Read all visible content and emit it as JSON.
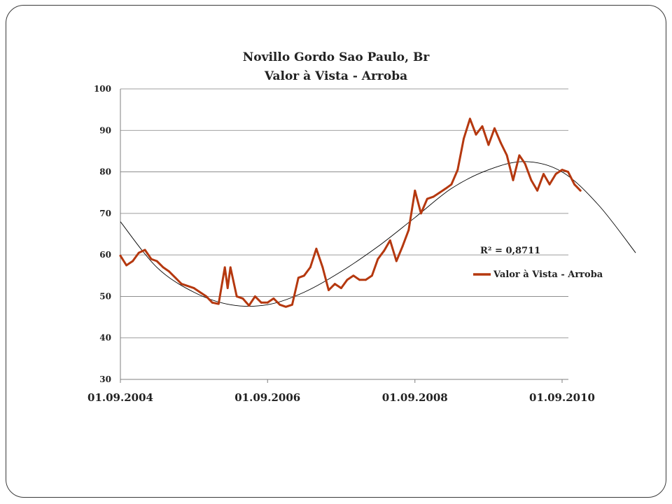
{
  "chart_data": {
    "type": "line",
    "title": "Novillo Gordo Sao Paulo, Br",
    "subtitle": "Valor à Vista - Arroba",
    "ylim": [
      30,
      100
    ],
    "yticks": [
      "30",
      "40",
      "50",
      "60",
      "70",
      "80",
      "90",
      "100"
    ],
    "xlim": [
      "2004-09-01",
      "2010-09-01"
    ],
    "xticks": [
      "01.09.2004",
      "01.09.2006",
      "01.09.2008",
      "01.09.2010"
    ],
    "grid": "horizontal",
    "legend_position": "right",
    "series": [
      {
        "name": "Valor à Vista - Arroba",
        "color": "#b5380f",
        "points": [
          [
            "2004-09-01",
            59.8
          ],
          [
            "2004-10-01",
            57.5
          ],
          [
            "2004-11-01",
            58.5
          ],
          [
            "2004-12-01",
            60.5
          ],
          [
            "2005-01-01",
            61.2
          ],
          [
            "2005-02-01",
            59.0
          ],
          [
            "2005-03-01",
            58.5
          ],
          [
            "2005-04-01",
            57.0
          ],
          [
            "2005-05-01",
            56.0
          ],
          [
            "2005-06-01",
            54.5
          ],
          [
            "2005-07-01",
            53.0
          ],
          [
            "2005-08-01",
            52.5
          ],
          [
            "2005-09-01",
            52.0
          ],
          [
            "2005-10-01",
            51.0
          ],
          [
            "2005-11-01",
            50.0
          ],
          [
            "2005-12-01",
            48.5
          ],
          [
            "2006-01-01",
            48.2
          ],
          [
            "2006-02-01",
            57.0
          ],
          [
            "2006-02-15",
            52.0
          ],
          [
            "2006-03-01",
            57.0
          ],
          [
            "2006-04-01",
            50.0
          ],
          [
            "2006-05-01",
            49.5
          ],
          [
            "2006-06-01",
            47.8
          ],
          [
            "2006-07-01",
            50.0
          ],
          [
            "2006-08-01",
            48.5
          ],
          [
            "2006-09-01",
            48.5
          ],
          [
            "2006-10-01",
            49.5
          ],
          [
            "2006-11-01",
            48.0
          ],
          [
            "2006-12-01",
            47.5
          ],
          [
            "2007-01-01",
            48.0
          ],
          [
            "2007-02-01",
            54.5
          ],
          [
            "2007-03-01",
            55.0
          ],
          [
            "2007-04-01",
            57.0
          ],
          [
            "2007-05-01",
            61.5
          ],
          [
            "2007-06-01",
            57.0
          ],
          [
            "2007-07-01",
            51.5
          ],
          [
            "2007-08-01",
            53.0
          ],
          [
            "2007-09-01",
            52.0
          ],
          [
            "2007-10-01",
            54.0
          ],
          [
            "2007-11-01",
            55.0
          ],
          [
            "2007-12-01",
            54.0
          ],
          [
            "2008-01-01",
            54.0
          ],
          [
            "2008-02-01",
            55.0
          ],
          [
            "2008-03-01",
            59.0
          ],
          [
            "2008-04-01",
            61.0
          ],
          [
            "2008-05-01",
            63.5
          ],
          [
            "2008-06-01",
            58.5
          ],
          [
            "2008-07-01",
            62.0
          ],
          [
            "2008-08-01",
            66.0
          ],
          [
            "2008-09-01",
            75.5
          ],
          [
            "2008-10-01",
            70.0
          ],
          [
            "2008-11-01",
            73.5
          ],
          [
            "2008-12-01",
            74.0
          ],
          [
            "2009-01-01",
            75.0
          ],
          [
            "2009-02-01",
            76.0
          ],
          [
            "2009-03-01",
            77.0
          ],
          [
            "2009-04-01",
            80.5
          ],
          [
            "2009-05-01",
            88.0
          ],
          [
            "2009-06-01",
            92.8
          ],
          [
            "2009-07-01",
            89.0
          ],
          [
            "2009-08-01",
            91.0
          ],
          [
            "2009-09-01",
            86.5
          ],
          [
            "2009-10-01",
            90.5
          ],
          [
            "2009-11-01",
            87.0
          ],
          [
            "2009-12-01",
            84.0
          ],
          [
            "2010-01-01",
            78.0
          ],
          [
            "2010-02-01",
            84.0
          ],
          [
            "2010-03-01",
            82.0
          ],
          [
            "2010-04-01",
            78.0
          ],
          [
            "2010-05-01",
            75.5
          ],
          [
            "2010-06-01",
            79.5
          ],
          [
            "2010-07-01",
            77.0
          ],
          [
            "2010-08-01",
            79.5
          ],
          [
            "2010-09-01",
            80.5
          ],
          [
            "2010-10-01",
            80.0
          ],
          [
            "2010-11-01",
            77.0
          ],
          [
            "2010-12-01",
            75.5
          ]
        ]
      }
    ],
    "trendline": {
      "type": "polynomial",
      "r_squared_label": "R² = 0,8711",
      "points": [
        [
          "2004-09-01",
          68.0
        ],
        [
          "2005-03-01",
          57.0
        ],
        [
          "2005-09-01",
          51.0
        ],
        [
          "2006-03-01",
          48.0
        ],
        [
          "2006-09-01",
          48.0
        ],
        [
          "2007-03-01",
          51.0
        ],
        [
          "2007-09-01",
          56.0
        ],
        [
          "2008-03-01",
          62.0
        ],
        [
          "2008-09-01",
          69.0
        ],
        [
          "2009-03-01",
          76.0
        ],
        [
          "2009-09-01",
          80.5
        ],
        [
          "2010-03-01",
          82.5
        ],
        [
          "2010-09-01",
          80.0
        ],
        [
          "2011-03-01",
          72.0
        ],
        [
          "2011-09-01",
          60.5
        ]
      ]
    }
  }
}
